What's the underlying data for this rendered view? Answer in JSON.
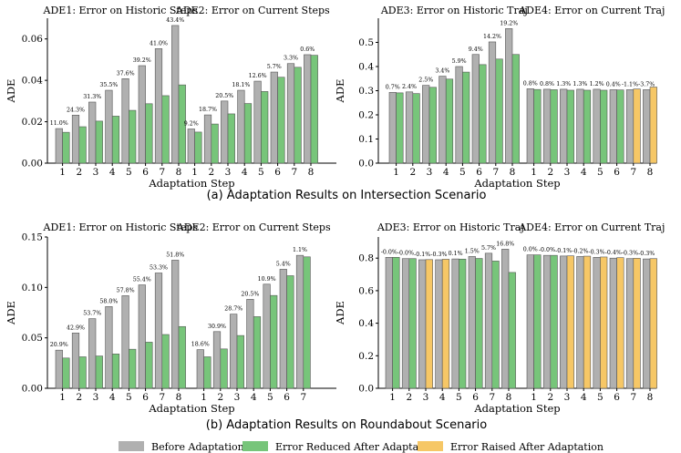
{
  "colors": {
    "before": "#b0b0b0",
    "reduced": "#77c57a",
    "raised": "#f6c766",
    "bar_edge": "#555555"
  },
  "legend": {
    "before": "Before Adaptation",
    "reduced": "Error Reduced After Adaptation",
    "raised": "Error Raised After Adaptation"
  },
  "captions": {
    "a": "(a) Adaptation Results on Intersection Scenario",
    "b": "(b) Adaptation Results on Roundabout Scenario"
  },
  "chart_data": [
    {
      "id": "intersection-historic-current",
      "type": "bar",
      "ylabel": "ADE",
      "xlabel": "Adaptation Step",
      "ylim": [
        0,
        0.07
      ],
      "yticks": [
        "0.00",
        "0.02",
        "0.04",
        "0.06"
      ],
      "ytick_values": [
        0,
        0.02,
        0.04,
        0.06
      ],
      "groups": [
        {
          "title": "ADE1: Error on Historic Steps",
          "categories": [
            "1",
            "2",
            "3",
            "4",
            "5",
            "6",
            "7",
            "8"
          ],
          "before": [
            0.0167,
            0.0232,
            0.0295,
            0.0352,
            0.0408,
            0.0471,
            0.0553,
            0.0665
          ],
          "after": [
            0.0149,
            0.0176,
            0.0203,
            0.0227,
            0.0255,
            0.0287,
            0.0326,
            0.0378
          ],
          "labels": [
            "11.0%",
            "24.3%",
            "31.3%",
            "35.5%",
            "37.6%",
            "39.2%",
            "41.0%",
            "43.4%"
          ]
        },
        {
          "title": "ADE2: Error on Current Steps",
          "categories": [
            "1",
            "2",
            "3",
            "4",
            "5",
            "6",
            "7",
            "8"
          ],
          "before": [
            0.0165,
            0.0233,
            0.03,
            0.0352,
            0.0396,
            0.044,
            0.0481,
            0.0524
          ],
          "after": [
            0.015,
            0.0189,
            0.0238,
            0.0288,
            0.0346,
            0.0415,
            0.0463,
            0.0521
          ],
          "labels": [
            "9.2%",
            "18.7%",
            "20.5%",
            "18.1%",
            "12.6%",
            "5.7%",
            "3.3%",
            "0.6%"
          ]
        }
      ]
    },
    {
      "id": "intersection-traj",
      "type": "bar",
      "ylabel": "ADE",
      "xlabel": "Adaptation Step",
      "ylim": [
        0,
        0.6
      ],
      "yticks": [
        "0.0",
        "0.1",
        "0.2",
        "0.3",
        "0.4",
        "0.5"
      ],
      "ytick_values": [
        0,
        0.1,
        0.2,
        0.3,
        0.4,
        0.5
      ],
      "groups": [
        {
          "title": "ADE3: Error on Historic Traj",
          "categories": [
            "1",
            "2",
            "3",
            "4",
            "5",
            "6",
            "7",
            "8"
          ],
          "before": [
            0.293,
            0.295,
            0.322,
            0.36,
            0.4,
            0.45,
            0.502,
            0.557
          ],
          "after": [
            0.291,
            0.288,
            0.314,
            0.348,
            0.377,
            0.408,
            0.431,
            0.45
          ],
          "labels": [
            "0.7%",
            "2.4%",
            "2.5%",
            "3.4%",
            "5.9%",
            "9.4%",
            "14.2%",
            "19.2%"
          ]
        },
        {
          "title": "ADE4: Error on Current Traj",
          "categories": [
            "1",
            "2",
            "3",
            "4",
            "5",
            "6",
            "7",
            "8"
          ],
          "before": [
            0.308,
            0.306,
            0.306,
            0.306,
            0.306,
            0.304,
            0.304,
            0.304
          ],
          "after": [
            0.305,
            0.304,
            0.302,
            0.302,
            0.302,
            0.303,
            0.307,
            0.315
          ],
          "labels": [
            "0.8%",
            "0.8%",
            "1.3%",
            "1.3%",
            "1.2%",
            "0.4%",
            "-1.1%",
            "-3.7%"
          ]
        }
      ]
    },
    {
      "id": "roundabout-historic-current",
      "type": "bar",
      "ylabel": "ADE",
      "xlabel": "Adaptation Step",
      "ylim": [
        0,
        0.15
      ],
      "yticks": [
        "0.00",
        "0.05",
        "0.10",
        "0.15"
      ],
      "ytick_values": [
        0,
        0.05,
        0.1,
        0.15
      ],
      "groups": [
        {
          "title": "ADE1: Error on Historic Steps",
          "categories": [
            "1",
            "2",
            "3",
            "4",
            "5",
            "6",
            "7",
            "8"
          ],
          "before": [
            0.0378,
            0.0548,
            0.069,
            0.081,
            0.0918,
            0.1025,
            0.1143,
            0.127
          ],
          "after": [
            0.03,
            0.0312,
            0.032,
            0.034,
            0.0387,
            0.0457,
            0.0533,
            0.0612
          ],
          "labels": [
            "20.9%",
            "42.9%",
            "53.7%",
            "58.0%",
            "57.8%",
            "55.4%",
            "53.3%",
            "51.8%"
          ]
        },
        {
          "title": "ADE2: Error on Current Steps",
          "categories": [
            "1",
            "2",
            "3",
            "4",
            "5",
            "6",
            "7"
          ],
          "before": [
            0.0383,
            0.0562,
            0.0735,
            0.0882,
            0.1032,
            0.118,
            0.1318
          ],
          "after": [
            0.0312,
            0.039,
            0.0523,
            0.071,
            0.092,
            0.1116,
            0.1303
          ],
          "labels": [
            "18.6%",
            "30.9%",
            "28.7%",
            "20.5%",
            "10.9%",
            "5.4%",
            "1.1%"
          ]
        }
      ]
    },
    {
      "id": "roundabout-traj",
      "type": "bar",
      "ylabel": "ADE",
      "xlabel": "Adaptation Step",
      "ylim": [
        0,
        0.93
      ],
      "yticks": [
        "0.0",
        "0.2",
        "0.4",
        "0.6",
        "0.8"
      ],
      "ytick_values": [
        0,
        0.2,
        0.4,
        0.6,
        0.8
      ],
      "groups": [
        {
          "title": "ADE3: Error on Historic Traj",
          "categories": [
            "1",
            "2",
            "3",
            "4",
            "5",
            "6",
            "7",
            "8"
          ],
          "before": [
            0.805,
            0.797,
            0.79,
            0.79,
            0.795,
            0.81,
            0.83,
            0.855
          ],
          "after": [
            0.805,
            0.797,
            0.791,
            0.793,
            0.794,
            0.798,
            0.782,
            0.712
          ],
          "labels": [
            "-0.0%",
            "-0.0%",
            "-0.1%",
            "-0.3%",
            "0.1%",
            "1.5%",
            "5.7%",
            "16.8%"
          ]
        },
        {
          "title": "ADE4: Error on Current Traj",
          "categories": [
            "1",
            "2",
            "3",
            "4",
            "5",
            "6",
            "7",
            "8"
          ],
          "before": [
            0.82,
            0.817,
            0.813,
            0.81,
            0.805,
            0.8,
            0.797,
            0.795
          ],
          "after": [
            0.82,
            0.817,
            0.814,
            0.812,
            0.807,
            0.803,
            0.799,
            0.797
          ],
          "labels": [
            "0.0%",
            "-0.0%",
            "-0.1%",
            "-0.2%",
            "-0.3%",
            "-0.4%",
            "-0.3%",
            "-0.3%"
          ]
        }
      ]
    }
  ]
}
